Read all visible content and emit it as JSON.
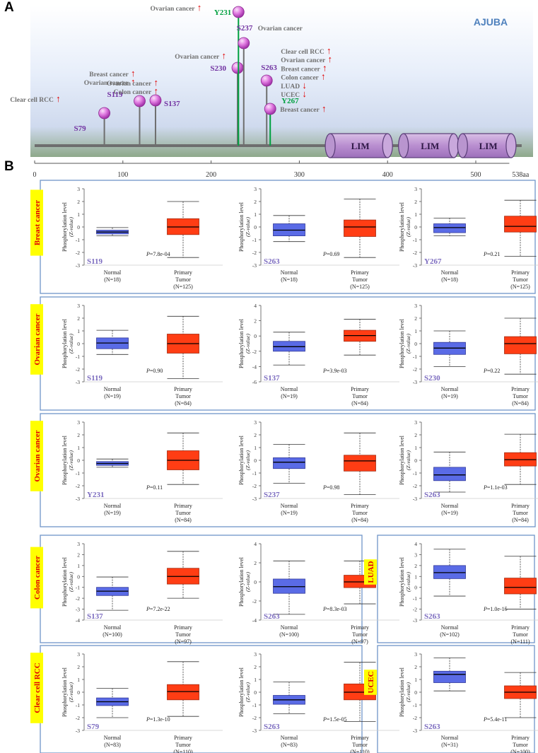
{
  "figure": {
    "panel_a_label": "A",
    "panel_b_label": "B",
    "protein_name": "AJUBA",
    "domain_label": "LIM",
    "length_label": "538aa",
    "arrow_up": "↑",
    "arrow_down": "↓"
  },
  "chart_data": [
    {
      "type": "lollipop",
      "title": "AJUBA",
      "x_axis": {
        "min": 0,
        "max": 538,
        "ticks": [
          0,
          100,
          200,
          300,
          400,
          500
        ]
      },
      "domains": [
        {
          "name": "LIM",
          "start": 335,
          "end": 400
        },
        {
          "name": "LIM",
          "start": 418,
          "end": 475
        },
        {
          "name": "LIM",
          "start": 485,
          "end": 540
        }
      ],
      "sites": [
        {
          "site": "S79",
          "position": 79,
          "color": "#7030a0",
          "annotations": [
            {
              "cancer": "Clear cell RCC",
              "direction": "up"
            }
          ]
        },
        {
          "site": "S119",
          "position": 119,
          "color": "#7030a0",
          "annotations": [
            {
              "cancer": "Breast cancer",
              "direction": "up"
            },
            {
              "cancer": "Ovarian cancer",
              "direction": "up"
            }
          ]
        },
        {
          "site": "S137",
          "position": 137,
          "color": "#7030a0",
          "annotations": [
            {
              "cancer": "Ovarian cancer",
              "direction": "up"
            },
            {
              "cancer": "Colon cancer",
              "direction": "up"
            }
          ]
        },
        {
          "site": "S230",
          "position": 230,
          "color": "#7030a0",
          "annotations": [
            {
              "cancer": "Ovarian cancer",
              "direction": "up"
            }
          ]
        },
        {
          "site": "Y231",
          "position": 231,
          "color": "#00a040",
          "annotations": [
            {
              "cancer": "Ovarian cancer",
              "direction": "up"
            }
          ]
        },
        {
          "site": "S237",
          "position": 237,
          "color": "#7030a0",
          "annotations": [
            {
              "cancer": "Ovarian cancer",
              "direction": "none"
            }
          ]
        },
        {
          "site": "S263",
          "position": 263,
          "color": "#7030a0",
          "annotations": [
            {
              "cancer": "Clear cell RCC",
              "direction": "up"
            },
            {
              "cancer": "Ovarian cancer",
              "direction": "up"
            },
            {
              "cancer": "Breast cancer",
              "direction": "up"
            },
            {
              "cancer": "Colon cancer",
              "direction": "up"
            },
            {
              "cancer": "LUAD",
              "direction": "down"
            },
            {
              "cancer": "UCEC",
              "direction": "down"
            }
          ]
        },
        {
          "site": "Y267",
          "position": 267,
          "color": "#00a040",
          "annotations": [
            {
              "cancer": "Breast cancer",
              "direction": "up"
            }
          ]
        }
      ]
    },
    {
      "type": "boxplot_grid",
      "ylabel": "Phosphorylation level",
      "ylabel2": "(Z-value)",
      "p_prefix": "P",
      "normal_label": "Normal",
      "tumor_label": "Primary",
      "tumor_label2": "Tumor",
      "rows": [
        {
          "cancer": "Breast cancer",
          "plots": [
            {
              "site": "S119",
              "p": "=7.8e-04",
              "ymin": -3,
              "ymax": 3,
              "ticks": [
                -3,
                -2,
                -1,
                0,
                1,
                2,
                3
              ],
              "normal_n": "(N=18)",
              "tumor_n": "(N=125)",
              "normal": {
                "min": -0.7,
                "q1": -0.55,
                "median": -0.4,
                "q3": -0.25,
                "max": -0.05
              },
              "tumor": {
                "min": -2.4,
                "q1": -0.6,
                "median": 0.0,
                "q3": 0.65,
                "max": 2.0
              }
            },
            {
              "site": "S263",
              "p": "=0.69",
              "ymin": -3,
              "ymax": 3,
              "ticks": [
                -3,
                -2,
                -1,
                0,
                1,
                2,
                3
              ],
              "normal_n": "(N=18)",
              "tumor_n": "(N=125)",
              "normal": {
                "min": -1.15,
                "q1": -0.7,
                "median": -0.25,
                "q3": 0.25,
                "max": 0.9
              },
              "tumor": {
                "min": -2.4,
                "q1": -0.75,
                "median": 0.0,
                "q3": 0.55,
                "max": 2.2
              }
            },
            {
              "site": "Y267",
              "p": "=0.21",
              "ymin": -3,
              "ymax": 3,
              "ticks": [
                -3,
                -2,
                -1,
                0,
                1,
                2,
                3
              ],
              "normal_n": "(N=18)",
              "tumor_n": "(N=125)",
              "normal": {
                "min": -0.7,
                "q1": -0.45,
                "median": -0.05,
                "q3": 0.25,
                "max": 0.7
              },
              "tumor": {
                "min": -2.3,
                "q1": -0.4,
                "median": 0.05,
                "q3": 0.85,
                "max": 2.1
              }
            }
          ]
        },
        {
          "cancer": "Ovarian cancer",
          "plots": [
            {
              "site": "S119",
              "p": "=0.90",
              "ymin": -3,
              "ymax": 3,
              "ticks": [
                -3,
                -2,
                -1,
                0,
                1,
                2,
                3
              ],
              "normal_n": "(N=19)",
              "tumor_n": "(N=84)",
              "normal": {
                "min": -0.85,
                "q1": -0.4,
                "median": 0.05,
                "q3": 0.45,
                "max": 1.05
              },
              "tumor": {
                "min": -2.75,
                "q1": -0.75,
                "median": 0.0,
                "q3": 0.75,
                "max": 2.15
              }
            },
            {
              "site": "S137",
              "p": "=3.9e-03",
              "ymin": -6,
              "ymax": 4,
              "ticks": [
                -6,
                -4,
                -2,
                0,
                2,
                4
              ],
              "normal_n": "(N=19)",
              "tumor_n": "(N=84)",
              "normal": {
                "min": -3.8,
                "q1": -2.0,
                "median": -1.4,
                "q3": -0.7,
                "max": 0.5
              },
              "tumor": {
                "min": -2.5,
                "q1": -0.7,
                "median": 0.05,
                "q3": 0.75,
                "max": 2.2
              }
            },
            {
              "site": "S230",
              "p": "=0.22",
              "ymin": -3,
              "ymax": 3,
              "ticks": [
                -3,
                -2,
                -1,
                0,
                1,
                2,
                3
              ],
              "normal_n": "(N=19)",
              "tumor_n": "(N=84)",
              "normal": {
                "min": -1.8,
                "q1": -0.85,
                "median": -0.35,
                "q3": 0.1,
                "max": 1.0
              },
              "tumor": {
                "min": -2.4,
                "q1": -0.8,
                "median": 0.0,
                "q3": 0.55,
                "max": 2.0
              }
            }
          ]
        },
        {
          "cancer": "Ovarian cancer",
          "plots": [
            {
              "site": "Y231",
              "p": "=0.11",
              "ymin": -3,
              "ymax": 3,
              "ticks": [
                -3,
                -2,
                -1,
                0,
                1,
                2,
                3
              ],
              "normal_n": "(N=19)",
              "tumor_n": "(N=84)",
              "normal": {
                "min": -0.55,
                "q1": -0.4,
                "median": -0.25,
                "q3": -0.1,
                "max": 0.1
              },
              "tumor": {
                "min": -1.9,
                "q1": -0.75,
                "median": 0.0,
                "q3": 0.75,
                "max": 2.15
              }
            },
            {
              "site": "S237",
              "p": "=0.98",
              "ymin": -3,
              "ymax": 3,
              "ticks": [
                -3,
                -2,
                -1,
                0,
                1,
                2,
                3
              ],
              "normal_n": "(N=19)",
              "tumor_n": "(N=84)",
              "normal": {
                "min": -1.8,
                "q1": -0.65,
                "median": -0.15,
                "q3": 0.2,
                "max": 1.25
              },
              "tumor": {
                "min": -2.7,
                "q1": -0.85,
                "median": -0.05,
                "q3": 0.4,
                "max": 2.15
              }
            },
            {
              "site": "S263",
              "p": "=1.1e-03",
              "ymin": -3,
              "ymax": 3,
              "ticks": [
                -3,
                -2,
                -1,
                0,
                1,
                2,
                3
              ],
              "normal_n": "(N=19)",
              "tumor_n": "(N=84)",
              "normal": {
                "min": -2.5,
                "q1": -1.6,
                "median": -1.15,
                "q3": -0.55,
                "max": 0.65
              },
              "tumor": {
                "min": -1.9,
                "q1": -0.45,
                "median": 0.05,
                "q3": 0.6,
                "max": 2.05
              }
            }
          ]
        },
        {
          "cancer": "Colon cancer",
          "plots": [
            {
              "site": "S137",
              "p": "=7.2e-22",
              "ymin": -4,
              "ymax": 3,
              "ticks": [
                -4,
                -3,
                -2,
                -1,
                0,
                1,
                2,
                3
              ],
              "normal_n": "(N=100)",
              "tumor_n": "(N=97)",
              "normal": {
                "min": -3.1,
                "q1": -1.75,
                "median": -1.35,
                "q3": -1.0,
                "max": -0.05
              },
              "tumor": {
                "min": -2.0,
                "q1": -0.7,
                "median": 0.0,
                "q3": 0.75,
                "max": 2.3
              }
            },
            {
              "site": "S263",
              "p": "=8.3e-03",
              "ymin": -4,
              "ymax": 4,
              "ticks": [
                -4,
                -2,
                0,
                2,
                4
              ],
              "normal_n": "(N=100)",
              "tumor_n": "(N=97)",
              "normal": {
                "min": -3.4,
                "q1": -1.2,
                "median": -0.5,
                "q3": 0.3,
                "max": 2.2
              },
              "tumor": {
                "min": -2.3,
                "q1": -0.6,
                "median": 0.0,
                "q3": 0.7,
                "max": 2.2
              }
            },
            {
              "site": "S263",
              "cancer": "LUAD",
              "p": "=1.0e-15",
              "ymin": -3,
              "ymax": 4,
              "ticks": [
                -3,
                -2,
                -1,
                0,
                1,
                2,
                3,
                4
              ],
              "normal_n": "(N=102)",
              "tumor_n": "(N=111)",
              "normal": {
                "min": -0.8,
                "q1": 0.8,
                "median": 1.35,
                "q3": 2.0,
                "max": 3.5
              },
              "tumor": {
                "min": -2.0,
                "q1": -0.6,
                "median": 0.0,
                "q3": 0.85,
                "max": 2.85
              }
            }
          ]
        },
        {
          "cancer": "Clear cell RCC",
          "plots": [
            {
              "site": "S79",
              "p": "=1.3e-10",
              "ymin": -3,
              "ymax": 3,
              "ticks": [
                -3,
                -2,
                -1,
                0,
                1,
                2,
                3
              ],
              "normal_n": "(N=83)",
              "tumor_n": "(N=110)",
              "normal": {
                "min": -2.0,
                "q1": -1.05,
                "median": -0.75,
                "q3": -0.45,
                "max": 0.3
              },
              "tumor": {
                "min": -1.9,
                "q1": -0.6,
                "median": 0.05,
                "q3": 0.6,
                "max": 2.4
              }
            },
            {
              "site": "S263",
              "p": "=1.5e-05",
              "ymin": -3,
              "ymax": 3,
              "ticks": [
                -3,
                -2,
                -1,
                0,
                1,
                2,
                3
              ],
              "normal_n": "(N=83)",
              "tumor_n": "(N=110)",
              "normal": {
                "min": -1.7,
                "q1": -0.95,
                "median": -0.6,
                "q3": -0.25,
                "max": 0.8
              },
              "tumor": {
                "min": -2.3,
                "q1": -0.6,
                "median": 0.0,
                "q3": 0.65,
                "max": 2.35
              }
            },
            {
              "site": "S263",
              "cancer": "UCEC",
              "p": "=5.4e-11",
              "ymin": -3,
              "ymax": 3,
              "ticks": [
                -3,
                -2,
                -1,
                0,
                1,
                2,
                3
              ],
              "normal_n": "(N=31)",
              "tumor_n": "(N=100)",
              "normal": {
                "min": 0.1,
                "q1": 0.75,
                "median": 1.4,
                "q3": 1.65,
                "max": 2.7
              },
              "tumor": {
                "min": -2.0,
                "q1": -0.5,
                "median": 0.0,
                "q3": 0.5,
                "max": 1.55
              }
            }
          ]
        }
      ]
    }
  ]
}
